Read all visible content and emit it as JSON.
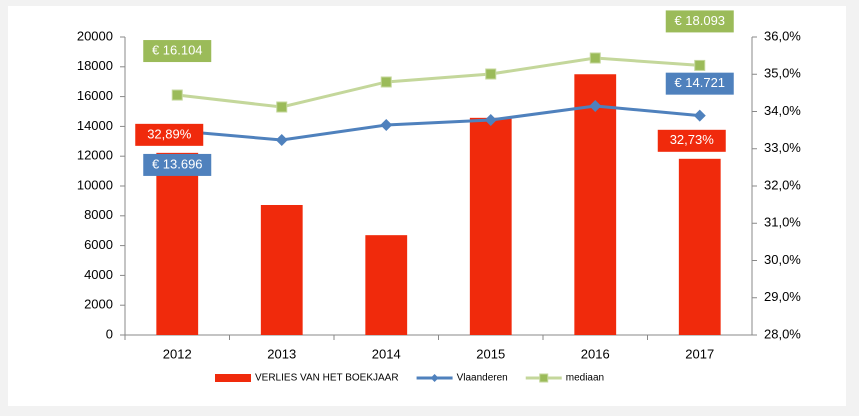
{
  "chart_data": {
    "type": "bar-line",
    "categories": [
      "2012",
      "2013",
      "2014",
      "2015",
      "2016",
      "2017"
    ],
    "series": [
      {
        "name": "VERLIES VAN HET BOEKJAAR",
        "type": "bar",
        "axis": "y2",
        "color": "#f02a0c",
        "values": [
          32.89,
          31.49,
          30.68,
          33.83,
          35.0,
          32.73
        ],
        "value_labels": [
          "32,89%",
          null,
          null,
          null,
          null,
          "32,73%"
        ]
      },
      {
        "name": "Vlaanderen",
        "type": "line",
        "color": "#4f81bd",
        "values": [
          13696,
          13087,
          14094,
          14430,
          15369,
          14721
        ],
        "value_labels": [
          "€ 13.696",
          null,
          null,
          null,
          null,
          "€ 14.721"
        ]
      },
      {
        "name": "mediaan",
        "type": "line",
        "color": "#c4d79b",
        "marker_color": "#9bbb59",
        "values": [
          16104,
          15302,
          16980,
          17517,
          18590,
          18093
        ],
        "value_labels": [
          "€ 16.104",
          null,
          null,
          null,
          null,
          "€ 18.093"
        ]
      }
    ],
    "ylim": [
      0,
      20000
    ],
    "yticks": [
      0,
      2000,
      4000,
      6000,
      8000,
      10000,
      12000,
      14000,
      16000,
      18000,
      20000
    ],
    "y2lim": [
      28,
      36
    ],
    "y2ticks": [
      {
        "value": 28,
        "label": "28,0%"
      },
      {
        "value": 29,
        "label": "29,0%"
      },
      {
        "value": 30,
        "label": "30,0%"
      },
      {
        "value": 31,
        "label": "31,0%"
      },
      {
        "value": 32,
        "label": "32,0%"
      },
      {
        "value": 33,
        "label": "33,0%"
      },
      {
        "value": 34,
        "label": "34,0%"
      },
      {
        "value": 35,
        "label": "35,0%"
      },
      {
        "value": 36,
        "label": "36,0%"
      }
    ],
    "legend": "bottom"
  }
}
